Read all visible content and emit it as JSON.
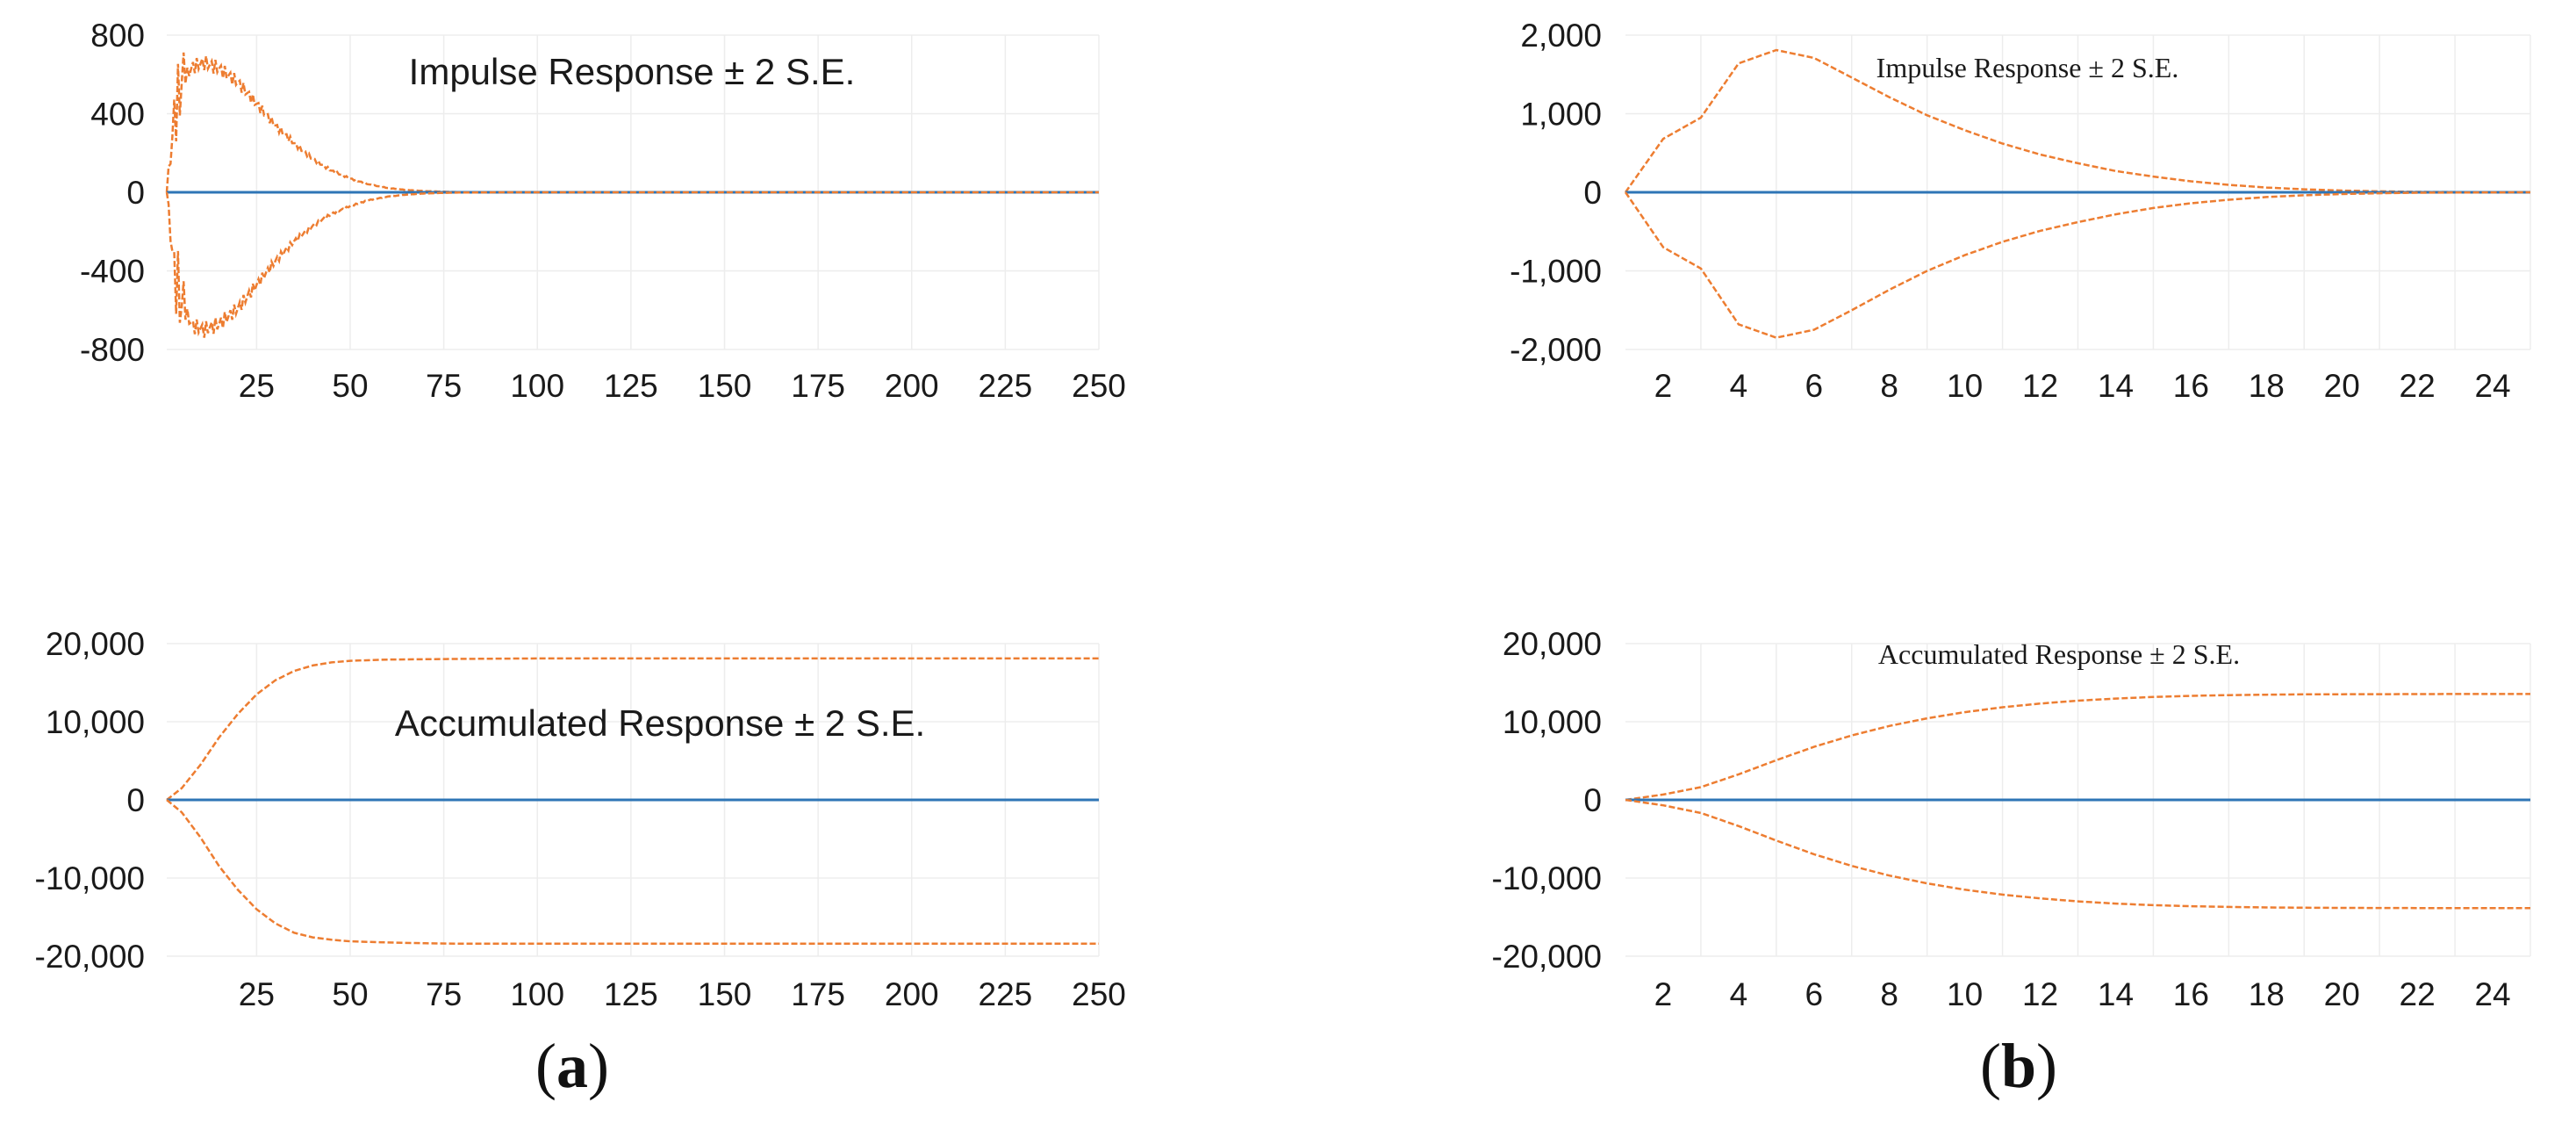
{
  "figure": {
    "panel_labels": [
      {
        "id": "a",
        "open": "(",
        "letter": "a",
        "close": ")"
      },
      {
        "id": "b",
        "open": "(",
        "letter": "b",
        "close": ")"
      }
    ]
  },
  "colors": {
    "band": "#ed7d31",
    "response": "#2e75b6",
    "grid": "#ededed"
  },
  "chart_data": [
    {
      "id": "a-top",
      "type": "line",
      "title": "Impulse Response ± 2 S.E.",
      "title_font": "sans",
      "xlim": [
        1,
        250
      ],
      "ylim": [
        -800,
        800
      ],
      "yticks": [
        800,
        400,
        0,
        -400,
        -800
      ],
      "ytick_labels": [
        "800",
        "400",
        "0",
        "-400",
        "-800"
      ],
      "xticks": [
        25,
        50,
        75,
        100,
        125,
        150,
        175,
        200,
        225,
        250
      ],
      "xtick_labels": [
        "25",
        "50",
        "75",
        "100",
        "125",
        "150",
        "175",
        "200",
        "225",
        "250"
      ],
      "x_gridlines": [
        25,
        50,
        75,
        100,
        125,
        150,
        175,
        200,
        225,
        250
      ],
      "grid": true,
      "oscillating": true,
      "series": [
        {
          "role": "upper",
          "x": [
            1,
            3,
            5,
            8,
            11,
            15,
            20,
            25,
            30,
            35,
            40,
            45,
            50,
            55,
            60,
            65,
            70,
            75,
            80,
            90,
            250
          ],
          "values": [
            0,
            380,
            560,
            640,
            660,
            630,
            560,
            450,
            340,
            250,
            170,
            110,
            70,
            40,
            22,
            12,
            6,
            3,
            1,
            0,
            0
          ]
        },
        {
          "role": "response",
          "x": [
            1,
            250
          ],
          "values": [
            0,
            0
          ]
        },
        {
          "role": "lower",
          "x": [
            1,
            3,
            5,
            8,
            11,
            15,
            20,
            25,
            30,
            35,
            40,
            45,
            50,
            55,
            60,
            65,
            70,
            75,
            80,
            90,
            250
          ],
          "values": [
            0,
            -400,
            -580,
            -680,
            -700,
            -670,
            -590,
            -470,
            -350,
            -250,
            -170,
            -110,
            -70,
            -40,
            -22,
            -12,
            -6,
            -3,
            -1,
            0,
            0
          ]
        }
      ]
    },
    {
      "id": "b-top",
      "type": "line",
      "title": "Impulse Response ± 2 S.E.",
      "title_font": "serif",
      "xlim": [
        1,
        25
      ],
      "ylim": [
        -2000,
        2000
      ],
      "yticks": [
        2000,
        1000,
        0,
        -1000,
        -2000
      ],
      "ytick_labels": [
        "2,000",
        "1,000",
        "0",
        "-1,000",
        "-2,000"
      ],
      "xticks": [
        2,
        4,
        6,
        8,
        10,
        12,
        14,
        16,
        18,
        20,
        22,
        24
      ],
      "xtick_labels": [
        "2",
        "4",
        "6",
        "8",
        "10",
        "12",
        "14",
        "16",
        "18",
        "20",
        "22",
        "24"
      ],
      "x_gridlines": [
        3,
        5,
        7,
        9,
        11,
        13,
        15,
        17,
        19,
        21,
        23,
        25
      ],
      "grid": true,
      "series": [
        {
          "role": "upper",
          "x": [
            1,
            2,
            3,
            4,
            5,
            6,
            7,
            8,
            9,
            10,
            11,
            12,
            13,
            14,
            15,
            16,
            17,
            18,
            19,
            20,
            21,
            22,
            23,
            24,
            25
          ],
          "values": [
            0,
            680,
            950,
            1640,
            1810,
            1710,
            1460,
            1210,
            980,
            790,
            620,
            480,
            370,
            270,
            200,
            140,
            95,
            60,
            38,
            22,
            12,
            6,
            3,
            1,
            0
          ]
        },
        {
          "role": "response",
          "x": [
            1,
            25
          ],
          "values": [
            0,
            0
          ]
        },
        {
          "role": "lower",
          "x": [
            1,
            2,
            3,
            4,
            5,
            6,
            7,
            8,
            9,
            10,
            11,
            12,
            13,
            14,
            15,
            16,
            17,
            18,
            19,
            20,
            21,
            22,
            23,
            24,
            25
          ],
          "values": [
            0,
            -700,
            -970,
            -1680,
            -1850,
            -1750,
            -1500,
            -1240,
            -1000,
            -800,
            -630,
            -490,
            -380,
            -280,
            -200,
            -140,
            -95,
            -60,
            -38,
            -22,
            -12,
            -6,
            -3,
            -1,
            0
          ]
        }
      ]
    },
    {
      "id": "a-bottom",
      "type": "line",
      "title": "Accumulated Response ± 2 S.E.",
      "title_font": "sans",
      "xlim": [
        1,
        250
      ],
      "ylim": [
        -20000,
        20000
      ],
      "yticks": [
        20000,
        10000,
        0,
        -10000,
        -20000
      ],
      "ytick_labels": [
        "20,000",
        "10,000",
        "0",
        "-10,000",
        "-20,000"
      ],
      "xticks": [
        25,
        50,
        75,
        100,
        125,
        150,
        175,
        200,
        225,
        250
      ],
      "xtick_labels": [
        "25",
        "50",
        "75",
        "100",
        "125",
        "150",
        "175",
        "200",
        "225",
        "250"
      ],
      "x_gridlines": [
        25,
        50,
        75,
        100,
        125,
        150,
        175,
        200,
        225,
        250
      ],
      "grid": true,
      "series": [
        {
          "role": "upper",
          "x": [
            1,
            5,
            10,
            15,
            20,
            25,
            30,
            35,
            40,
            45,
            50,
            60,
            70,
            80,
            100,
            150,
            250
          ],
          "values": [
            0,
            1500,
            4500,
            8000,
            11000,
            13500,
            15300,
            16500,
            17200,
            17600,
            17800,
            17950,
            18000,
            18050,
            18100,
            18100,
            18100
          ]
        },
        {
          "role": "response",
          "x": [
            1,
            250
          ],
          "values": [
            0,
            0
          ]
        },
        {
          "role": "lower",
          "x": [
            1,
            5,
            10,
            15,
            20,
            25,
            30,
            35,
            40,
            45,
            50,
            60,
            70,
            80,
            100,
            150,
            250
          ],
          "values": [
            0,
            -1600,
            -4800,
            -8500,
            -11500,
            -14000,
            -15800,
            -17000,
            -17600,
            -17900,
            -18100,
            -18250,
            -18350,
            -18400,
            -18400,
            -18400,
            -18400
          ]
        }
      ]
    },
    {
      "id": "b-bottom",
      "type": "line",
      "title": "Accumulated Response ± 2 S.E.",
      "title_font": "serif",
      "xlim": [
        1,
        25
      ],
      "ylim": [
        -20000,
        20000
      ],
      "yticks": [
        20000,
        10000,
        0,
        -10000,
        -20000
      ],
      "ytick_labels": [
        "20,000",
        "10,000",
        "0",
        "-10,000",
        "-20,000"
      ],
      "xticks": [
        2,
        4,
        6,
        8,
        10,
        12,
        14,
        16,
        18,
        20,
        22,
        24
      ],
      "xtick_labels": [
        "2",
        "4",
        "6",
        "8",
        "10",
        "12",
        "14",
        "16",
        "18",
        "20",
        "22",
        "24"
      ],
      "x_gridlines": [
        3,
        5,
        7,
        9,
        11,
        13,
        15,
        17,
        19,
        21,
        23,
        25
      ],
      "grid": true,
      "series": [
        {
          "role": "upper",
          "x": [
            1,
            2,
            3,
            4,
            5,
            6,
            7,
            8,
            9,
            10,
            11,
            12,
            13,
            14,
            15,
            16,
            17,
            18,
            19,
            20,
            21,
            22,
            23,
            24,
            25
          ],
          "values": [
            0,
            680,
            1630,
            3270,
            5080,
            6790,
            8250,
            9460,
            10440,
            11230,
            11850,
            12330,
            12700,
            12970,
            13170,
            13310,
            13400,
            13460,
            13500,
            13520,
            13530,
            13540,
            13545,
            13548,
            13550
          ]
        },
        {
          "role": "response",
          "x": [
            1,
            25
          ],
          "values": [
            0,
            0
          ]
        },
        {
          "role": "lower",
          "x": [
            1,
            2,
            3,
            4,
            5,
            6,
            7,
            8,
            9,
            10,
            11,
            12,
            13,
            14,
            15,
            16,
            17,
            18,
            19,
            20,
            21,
            22,
            23,
            24,
            25
          ],
          "values": [
            0,
            -700,
            -1670,
            -3350,
            -5200,
            -6950,
            -8450,
            -9690,
            -10690,
            -11490,
            -12120,
            -12610,
            -12990,
            -13270,
            -13470,
            -13610,
            -13700,
            -13760,
            -13800,
            -13820,
            -13830,
            -13840,
            -13845,
            -13848,
            -13850
          ]
        }
      ]
    }
  ]
}
